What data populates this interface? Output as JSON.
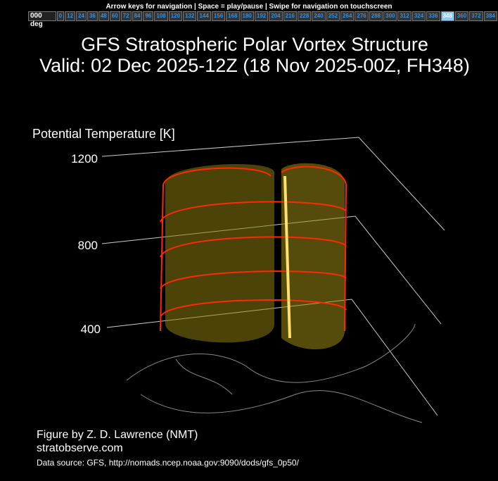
{
  "header": {
    "hint": "Arrow keys for navigation | Space = play/pause | Swipe for navigation on touchscreen",
    "first_button": "000 deg",
    "frames": [
      0,
      12,
      24,
      36,
      48,
      60,
      72,
      84,
      96,
      108,
      120,
      132,
      144,
      156,
      168,
      180,
      192,
      204,
      216,
      228,
      240,
      252,
      264,
      276,
      288,
      300,
      312,
      324,
      336,
      348,
      360,
      372,
      384
    ],
    "selected": 348
  },
  "title": {
    "line1": "GFS Stratospheric Polar Vortex Structure",
    "line2": "Valid: 02 Dec 2025-12Z  (18 Nov 2025-00Z, FH348)"
  },
  "plot": {
    "axis_label": "Potential Temperature [K]",
    "ticks": [
      "1200",
      "800",
      "400"
    ]
  },
  "footer": {
    "credit": "Figure by Z. D. Lawrence (NMT)",
    "site": "stratobserve.com",
    "source": "Data source: GFS, http://nomads.ncep.noaa.gov:9090/dods/gfs_0p50/"
  }
}
